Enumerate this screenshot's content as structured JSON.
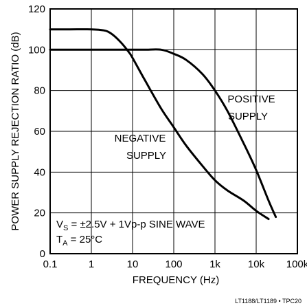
{
  "chart_data": {
    "type": "line",
    "xlabel": "FREQUENCY (Hz)",
    "ylabel": "POWER SUPPLY REJECTION RATIO (dB)",
    "xscale": "log",
    "xlim": [
      0.1,
      100000
    ],
    "ylim": [
      0,
      120
    ],
    "grid": true,
    "x_ticks": [
      0.1,
      1,
      10,
      100,
      1000,
      10000,
      100000
    ],
    "x_tick_labels": [
      "0.1",
      "1",
      "10",
      "100",
      "1k",
      "10k",
      "100k"
    ],
    "y_ticks": [
      0,
      20,
      40,
      60,
      80,
      100,
      120
    ],
    "y_tick_labels": [
      "0",
      "20",
      "40",
      "60",
      "80",
      "100",
      "120"
    ],
    "series": [
      {
        "name": "NEGATIVE SUPPLY",
        "x": [
          0.1,
          0.3,
          1,
          2,
          3,
          5,
          8,
          10,
          20,
          50,
          100,
          200,
          500,
          1000,
          2000,
          5000,
          10000,
          20000
        ],
        "y": [
          110,
          110,
          110,
          109.5,
          108,
          104,
          99,
          96,
          85,
          71,
          62,
          53,
          43,
          36,
          31,
          26,
          21,
          17
        ]
      },
      {
        "name": "POSITIVE SUPPLY",
        "x": [
          0.1,
          1,
          5,
          10,
          20,
          50,
          100,
          200,
          500,
          1000,
          2000,
          5000,
          10000,
          20000,
          30000
        ],
        "y": [
          100,
          100,
          100,
          100,
          100,
          100,
          98,
          95,
          88,
          80,
          70,
          54,
          41,
          26,
          18
        ]
      }
    ],
    "labels": {
      "positive_line1": "POSITIVE",
      "positive_line2": "SUPPLY",
      "negative_line1": "NEGATIVE",
      "negative_line2": "SUPPLY"
    },
    "annotation": {
      "vs_main": "V",
      "vs_sub": "S",
      "vs_rest": " = ±2.5V + 1Vp-p SINE WAVE",
      "ta_main": "T",
      "ta_sub": "A",
      "ta_rest": " = 25°C"
    }
  },
  "footer": "LT1188/LT1189 • TPC20"
}
